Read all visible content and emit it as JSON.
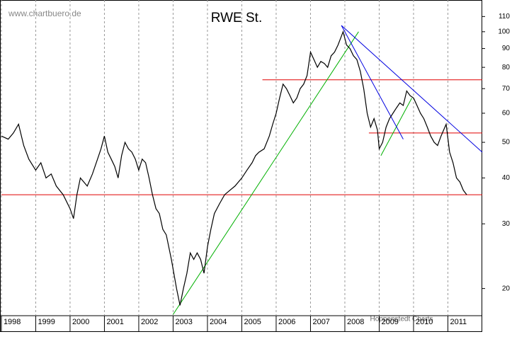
{
  "chart_data": {
    "type": "line",
    "title": "RWE St.",
    "annotations": [
      "www.chartbuero.de",
      "Hoppenstedt Charts"
    ],
    "log_scale": true,
    "grid": true,
    "color": "#000000",
    "x": [
      1998.0,
      1998.2,
      1998.35,
      1998.5,
      1998.65,
      1998.8,
      1999.0,
      1999.15,
      1999.3,
      1999.45,
      1999.6,
      1999.8,
      2000.0,
      2000.1,
      2000.2,
      2000.3,
      2000.5,
      2000.65,
      2000.8,
      2000.9,
      2001.0,
      2001.1,
      2001.2,
      2001.3,
      2001.4,
      2001.5,
      2001.6,
      2001.7,
      2001.8,
      2001.9,
      2002.0,
      2002.1,
      2002.2,
      2002.3,
      2002.4,
      2002.5,
      2002.6,
      2002.7,
      2002.8,
      2002.95,
      2003.1,
      2003.2,
      2003.3,
      2003.4,
      2003.5,
      2003.6,
      2003.7,
      2003.8,
      2003.9,
      2004.0,
      2004.1,
      2004.2,
      2004.35,
      2004.5,
      2004.65,
      2004.8,
      2005.0,
      2005.15,
      2005.3,
      2005.4,
      2005.5,
      2005.65,
      2005.8,
      2005.9,
      2006.0,
      2006.1,
      2006.2,
      2006.3,
      2006.4,
      2006.5,
      2006.6,
      2006.7,
      2006.8,
      2006.9,
      2007.0,
      2007.1,
      2007.2,
      2007.3,
      2007.4,
      2007.5,
      2007.6,
      2007.7,
      2007.8,
      2007.95,
      2008.05,
      2008.15,
      2008.25,
      2008.35,
      2008.45,
      2008.55,
      2008.65,
      2008.75,
      2008.85,
      2008.95,
      2009.0,
      2009.1,
      2009.2,
      2009.3,
      2009.4,
      2009.5,
      2009.6,
      2009.7,
      2009.8,
      2009.9,
      2010.0,
      2010.1,
      2010.2,
      2010.3,
      2010.4,
      2010.5,
      2010.6,
      2010.7,
      2010.8,
      2010.95,
      2011.05,
      2011.15,
      2011.25,
      2011.35,
      2011.45,
      2011.55
    ],
    "values": [
      52,
      51,
      53,
      56,
      49,
      45,
      42,
      44,
      40,
      41,
      38,
      36,
      33,
      31,
      36,
      40,
      38,
      41,
      45,
      48,
      52,
      47,
      45,
      43,
      40,
      46,
      50,
      48,
      47,
      45,
      42,
      45,
      44,
      40,
      36,
      33,
      32,
      29,
      28,
      24,
      20,
      18,
      20,
      22,
      25,
      24,
      25,
      24,
      22,
      26,
      29,
      32,
      34,
      36,
      37,
      38,
      40,
      42,
      44,
      46,
      47,
      48,
      52,
      56,
      60,
      66,
      72,
      70,
      67,
      64,
      66,
      70,
      72,
      76,
      88,
      84,
      80,
      83,
      82,
      80,
      86,
      88,
      92,
      100,
      92,
      90,
      86,
      84,
      78,
      70,
      60,
      55,
      58,
      54,
      48,
      50,
      55,
      58,
      60,
      62,
      64,
      63,
      69,
      67,
      66,
      63,
      60,
      58,
      55,
      52,
      50,
      49,
      52,
      56,
      47,
      44,
      40,
      39,
      37,
      36
    ],
    "lines": [
      {
        "x": [
          2005.6,
          2012.0
        ],
        "y": [
          74,
          74
        ],
        "color": "#e00000"
      },
      {
        "x": [
          2008.7,
          2012.0
        ],
        "y": [
          53,
          53
        ],
        "color": "#e00000"
      },
      {
        "x": [
          1998.0,
          2012.0
        ],
        "y": [
          36,
          36
        ],
        "color": "#e00000"
      },
      {
        "x": [
          2003.0,
          2008.4
        ],
        "y": [
          17,
          100
        ],
        "color": "#00b000"
      },
      {
        "x": [
          2009.05,
          2009.95
        ],
        "y": [
          46,
          66
        ],
        "color": "#00b000"
      },
      {
        "x": [
          2007.9,
          2012.0
        ],
        "y": [
          104,
          47
        ],
        "color": "#0000e0"
      },
      {
        "x": [
          2007.9,
          2009.7
        ],
        "y": [
          104,
          51
        ],
        "color": "#0000e0"
      }
    ],
    "xlim": [
      1997.96,
      2011.98
    ],
    "xticks": [
      1998,
      1999,
      2000,
      2001,
      2002,
      2003,
      2004,
      2005,
      2006,
      2007,
      2008,
      2009,
      2010,
      2011
    ],
    "ylim": [
      15.3,
      122
    ],
    "yticks": [
      20,
      30,
      40,
      50,
      60,
      70,
      80,
      90,
      100,
      110
    ]
  }
}
